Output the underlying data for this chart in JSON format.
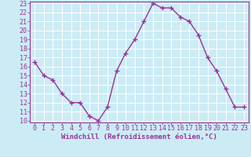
{
  "x": [
    0,
    1,
    2,
    3,
    4,
    5,
    6,
    7,
    8,
    9,
    10,
    11,
    12,
    13,
    14,
    15,
    16,
    17,
    18,
    19,
    20,
    21,
    22,
    23
  ],
  "y": [
    16.5,
    15.0,
    14.5,
    13.0,
    12.0,
    12.0,
    10.5,
    10.0,
    11.5,
    15.5,
    17.5,
    19.0,
    21.0,
    23.0,
    22.5,
    22.5,
    21.5,
    21.0,
    19.5,
    17.0,
    15.5,
    13.5,
    11.5,
    11.5
  ],
  "line_color": "#993399",
  "marker": "+",
  "marker_size": 4,
  "line_width": 1.0,
  "bg_color": "#ccecf5",
  "grid_color": "#ffffff",
  "xlabel": "Windchill (Refroidissement éolien,°C)",
  "xlabel_color": "#993399",
  "tick_color": "#993399",
  "label_color": "#993399",
  "ylim": [
    10,
    23
  ],
  "xlim": [
    -0.5,
    23.5
  ],
  "yticks": [
    10,
    11,
    12,
    13,
    14,
    15,
    16,
    17,
    18,
    19,
    20,
    21,
    22,
    23
  ],
  "xticks": [
    0,
    1,
    2,
    3,
    4,
    5,
    6,
    7,
    8,
    9,
    10,
    11,
    12,
    13,
    14,
    15,
    16,
    17,
    18,
    19,
    20,
    21,
    22,
    23
  ],
  "tick_fontsize": 6,
  "xlabel_fontsize": 6.5,
  "spine_color": "#993399"
}
